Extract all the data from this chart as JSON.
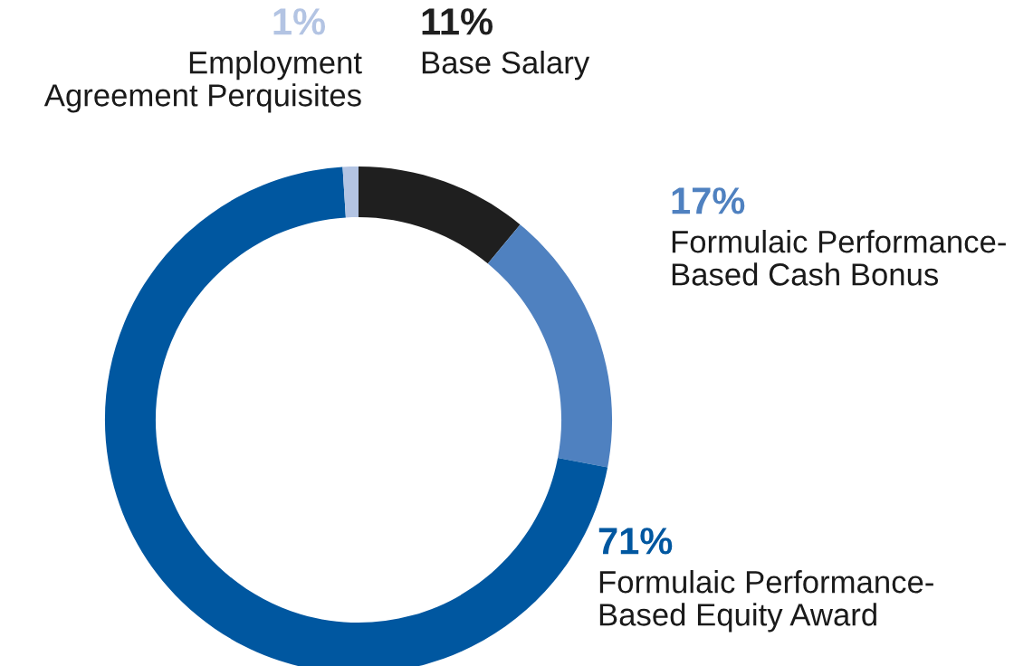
{
  "chart_data": {
    "type": "donut",
    "categories": [
      "Base Salary",
      "Formulaic Performance-\nBased Cash Bonus",
      "Formulaic Performance-\nBased Equity Award",
      "Employment\nAgreement Perquisites"
    ],
    "values": [
      11,
      17,
      71,
      1
    ],
    "value_labels": [
      "11%",
      "17%",
      "71%",
      "1%"
    ],
    "colors": [
      "#1f1f1f",
      "#4f81c0",
      "#0057a0",
      "#b3c4e3"
    ]
  }
}
